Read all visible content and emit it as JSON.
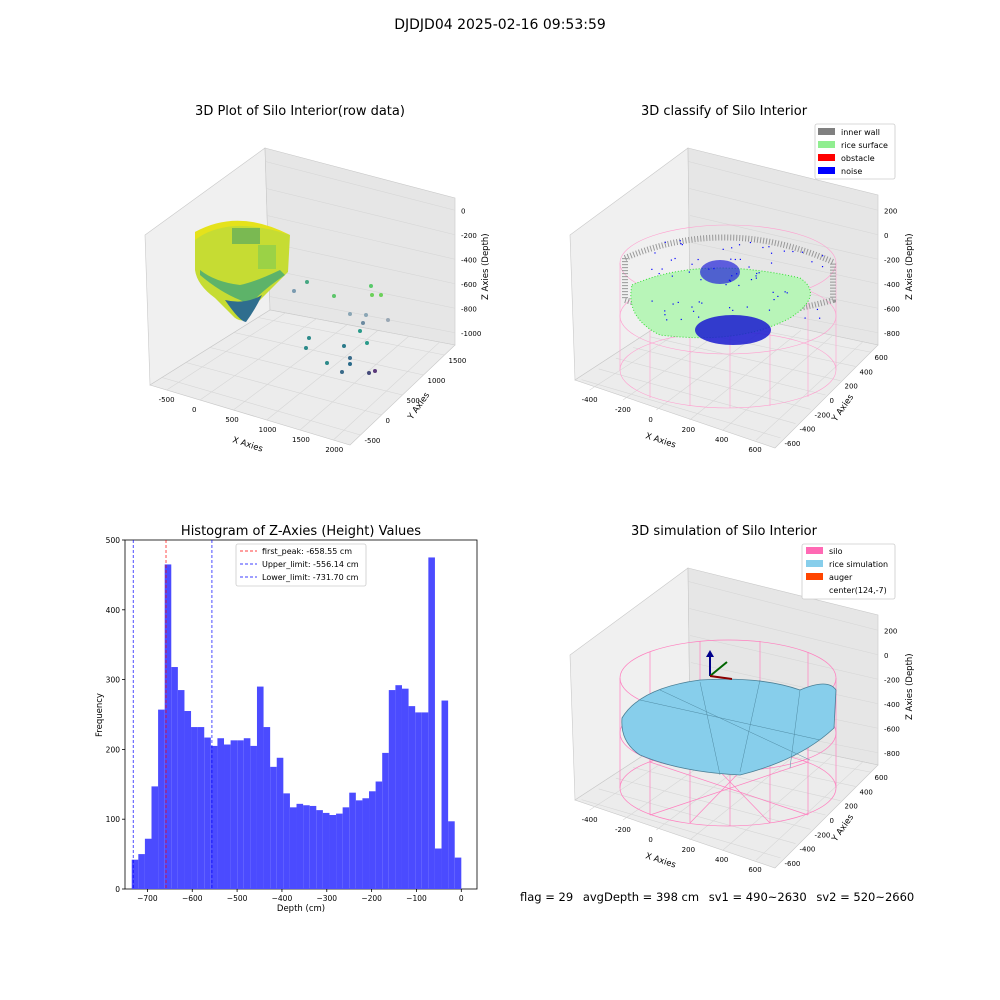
{
  "suptitle": "DJDJD04 2025-02-16 09:53:59",
  "panels": {
    "raw": {
      "title": "3D Plot of Silo Interior(row data)",
      "xlabel": "X Axies",
      "ylabel": "Y Axies",
      "zlabel": "Z Axies (Depth)",
      "xticks": [
        "-500",
        "0",
        "500",
        "1000",
        "1500",
        "2000"
      ],
      "yticks": [
        "-500",
        "0",
        "500",
        "1000",
        "1500"
      ],
      "zticks": [
        "0",
        "-200",
        "-400",
        "-600",
        "-800",
        "-1000"
      ]
    },
    "classify": {
      "title": "3D classify of Silo Interior",
      "xlabel": "X Axies",
      "ylabel": "Y Axies",
      "zlabel": "Z Axies (Depth)",
      "xticks": [
        "-400",
        "-200",
        "0",
        "200",
        "400",
        "600"
      ],
      "yticks": [
        "-600",
        "-400",
        "-200",
        "0",
        "200",
        "400",
        "600"
      ],
      "zticks": [
        "200",
        "0",
        "-200",
        "-400",
        "-600",
        "-800"
      ],
      "legend": [
        {
          "label": "inner wall",
          "color": "#808080"
        },
        {
          "label": "rice surface",
          "color": "#90ee90"
        },
        {
          "label": "obstacle",
          "color": "#ff0000"
        },
        {
          "label": "noise",
          "color": "#0000ff"
        }
      ]
    },
    "simulation": {
      "title": "3D simulation of Silo Interior",
      "xlabel": "X Axies",
      "ylabel": "Y Axies",
      "zlabel": "Z Axies (Depth)",
      "xticks": [
        "-400",
        "-200",
        "0",
        "200",
        "400",
        "600"
      ],
      "yticks": [
        "-600",
        "-400",
        "-200",
        "0",
        "200",
        "400",
        "600"
      ],
      "zticks": [
        "200",
        "0",
        "-200",
        "-400",
        "-600",
        "-800"
      ],
      "legend": [
        {
          "label": "silo",
          "color": "#ff69b4"
        },
        {
          "label": "rice simulation",
          "color": "#87ceeb"
        },
        {
          "label": "auger",
          "color": "#ff4500"
        },
        {
          "label": "center(124,-7)",
          "color": "#ffffff"
        }
      ]
    }
  },
  "chart_data": {
    "type": "bar",
    "title": "Histogram of Z-Axies (Height) Values",
    "xlabel": "Depth (cm)",
    "ylabel": "Frequency",
    "xlim": [
      -750,
      35
    ],
    "ylim": [
      0,
      500
    ],
    "xticks": [
      -700,
      -600,
      -500,
      -400,
      -300,
      -200,
      -100,
      0
    ],
    "yticks": [
      0,
      100,
      200,
      300,
      400,
      500
    ],
    "bin_start": -735,
    "bin_width": 14.7,
    "values": [
      42,
      50,
      72,
      147,
      257,
      465,
      318,
      285,
      255,
      232,
      232,
      217,
      205,
      216,
      207,
      213,
      213,
      216,
      205,
      290,
      232,
      175,
      188,
      137,
      117,
      122,
      120,
      119,
      113,
      109,
      106,
      108,
      117,
      138,
      127,
      130,
      140,
      154,
      195,
      285,
      292,
      287,
      262,
      253,
      253,
      475,
      58,
      270,
      97,
      45
    ],
    "bar_color": "#4b4bff",
    "vlines": [
      {
        "x": -658.55,
        "color": "#ff0000",
        "label": "first_peak: -658.55 cm"
      },
      {
        "x": -556.14,
        "color": "#0000ff",
        "label": "Upper_limit: -556.14 cm"
      },
      {
        "x": -731.7,
        "color": "#0000ff",
        "label": "Lower_limit: -731.70 cm"
      }
    ]
  },
  "footer": {
    "flag": "flag = 29",
    "avg": "avgDepth = 398 cm",
    "sv1": "sv1 = 490~2630",
    "sv2": "sv2 = 520~2660"
  }
}
